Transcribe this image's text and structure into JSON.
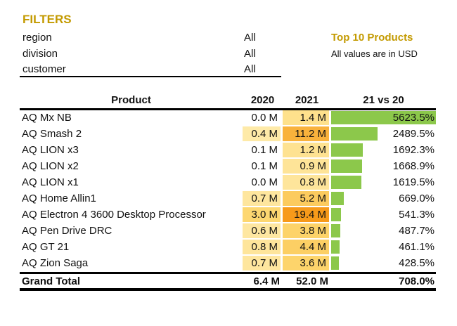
{
  "filters": {
    "title": "FILTERS",
    "items": [
      {
        "label": "region",
        "value": "All"
      },
      {
        "label": "division",
        "value": "All"
      },
      {
        "label": "customer",
        "value": "All"
      }
    ]
  },
  "report": {
    "title": "Top 10 Products",
    "note": "All values are in USD"
  },
  "table": {
    "headers": [
      "Product",
      "2020",
      "2021",
      "21 vs 20"
    ],
    "rows": [
      {
        "product": "AQ Mx NB",
        "y2020": "0.0 M",
        "y2021": "1.4 M",
        "change": "5623.5%",
        "v2020": 0.0,
        "v2021": 1.4,
        "pct": 5623.5
      },
      {
        "product": "AQ Smash 2",
        "y2020": "0.4 M",
        "y2021": "11.2 M",
        "change": "2489.5%",
        "v2020": 0.4,
        "v2021": 11.2,
        "pct": 2489.5
      },
      {
        "product": "AQ LION x3",
        "y2020": "0.1 M",
        "y2021": "1.2 M",
        "change": "1692.3%",
        "v2020": 0.1,
        "v2021": 1.2,
        "pct": 1692.3
      },
      {
        "product": "AQ LION x2",
        "y2020": "0.1 M",
        "y2021": "0.9 M",
        "change": "1668.9%",
        "v2020": 0.1,
        "v2021": 0.9,
        "pct": 1668.9
      },
      {
        "product": "AQ LION x1",
        "y2020": "0.0 M",
        "y2021": "0.8 M",
        "change": "1619.5%",
        "v2020": 0.0,
        "v2021": 0.8,
        "pct": 1619.5
      },
      {
        "product": "AQ Home Allin1",
        "y2020": "0.7 M",
        "y2021": "5.2 M",
        "change": "669.0%",
        "v2020": 0.7,
        "v2021": 5.2,
        "pct": 669.0
      },
      {
        "product": "AQ Electron 4 3600 Desktop Processor",
        "y2020": "3.0 M",
        "y2021": "19.4 M",
        "change": "541.3%",
        "v2020": 3.0,
        "v2021": 19.4,
        "pct": 541.3
      },
      {
        "product": "AQ Pen Drive DRC",
        "y2020": "0.6 M",
        "y2021": "3.8 M",
        "change": "487.7%",
        "v2020": 0.6,
        "v2021": 3.8,
        "pct": 487.7
      },
      {
        "product": "AQ GT 21",
        "y2020": "0.8 M",
        "y2021": "4.4 M",
        "change": "461.1%",
        "v2020": 0.8,
        "v2021": 4.4,
        "pct": 461.1
      },
      {
        "product": "AQ Zion Saga",
        "y2020": "0.7 M",
        "y2021": "3.6 M",
        "change": "428.5%",
        "v2020": 0.7,
        "v2021": 3.6,
        "pct": 428.5
      }
    ],
    "total": {
      "label": "Grand Total",
      "y2020": "6.4 M",
      "y2021": "52.0 M",
      "change": "708.0%"
    }
  },
  "colors": {
    "accent": "#c39a00",
    "bar": "#8cc84b",
    "heat_low": "#fff4c8",
    "heat_mid": "#fdd76f",
    "heat_high": "#f79a1a"
  }
}
